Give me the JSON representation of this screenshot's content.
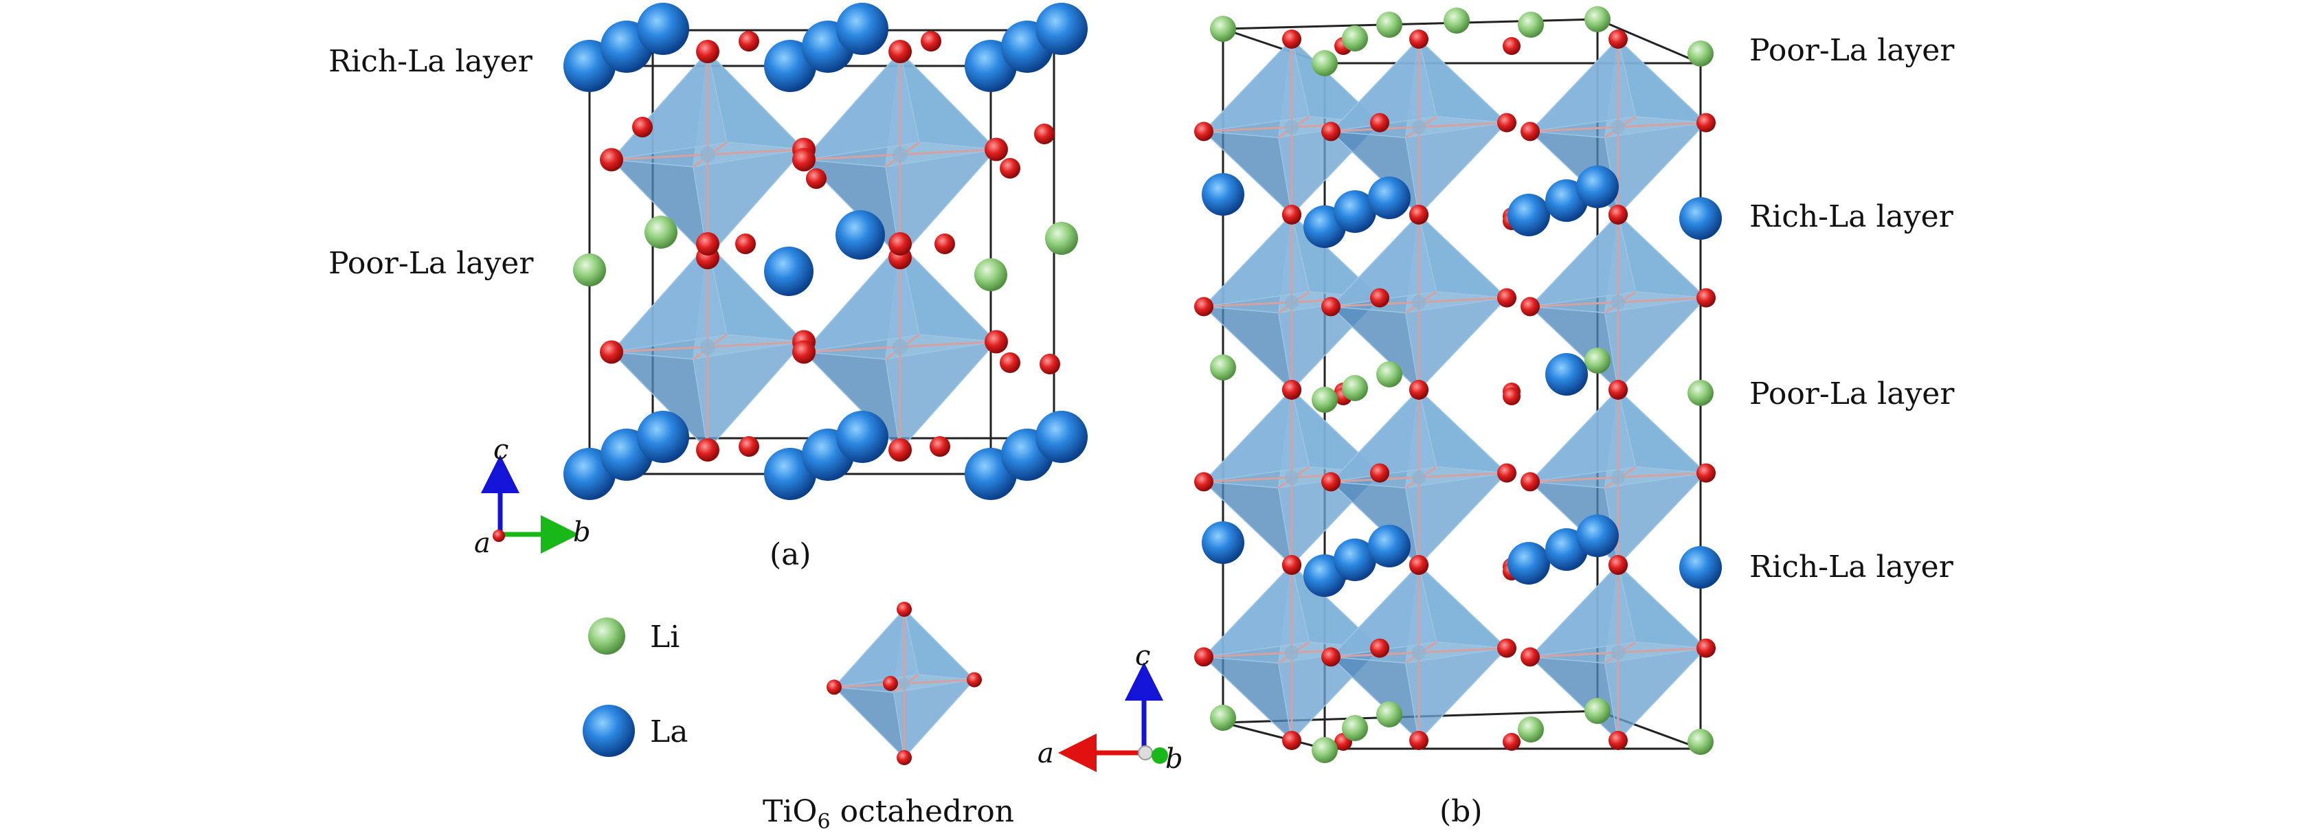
{
  "panel_a": {
    "caption": "(a)",
    "layer_labels": [
      "Rich-La layer",
      "Poor-La layer"
    ]
  },
  "panel_b": {
    "caption": "(b)",
    "layer_labels": [
      "Poor-La layer",
      "Rich-La layer",
      "Poor-La layer",
      "Rich-La layer"
    ]
  },
  "legend": {
    "li": "Li",
    "la": "La",
    "octahedron_prefix": "TiO",
    "octahedron_subscript": "6",
    "octahedron_suffix": " octahedron"
  },
  "axes_a": {
    "c": "c",
    "a": "a",
    "b": "b"
  },
  "axes_b": {
    "c": "c",
    "a": "a",
    "b": "b"
  },
  "colors": {
    "la": "#1f6fc4",
    "li": "#8cc97a",
    "oxygen": "#d42020",
    "octahedron": "#6fa3cc",
    "axis_c": "#1414d8",
    "axis_a": "#e01010",
    "axis_b": "#18b818"
  }
}
